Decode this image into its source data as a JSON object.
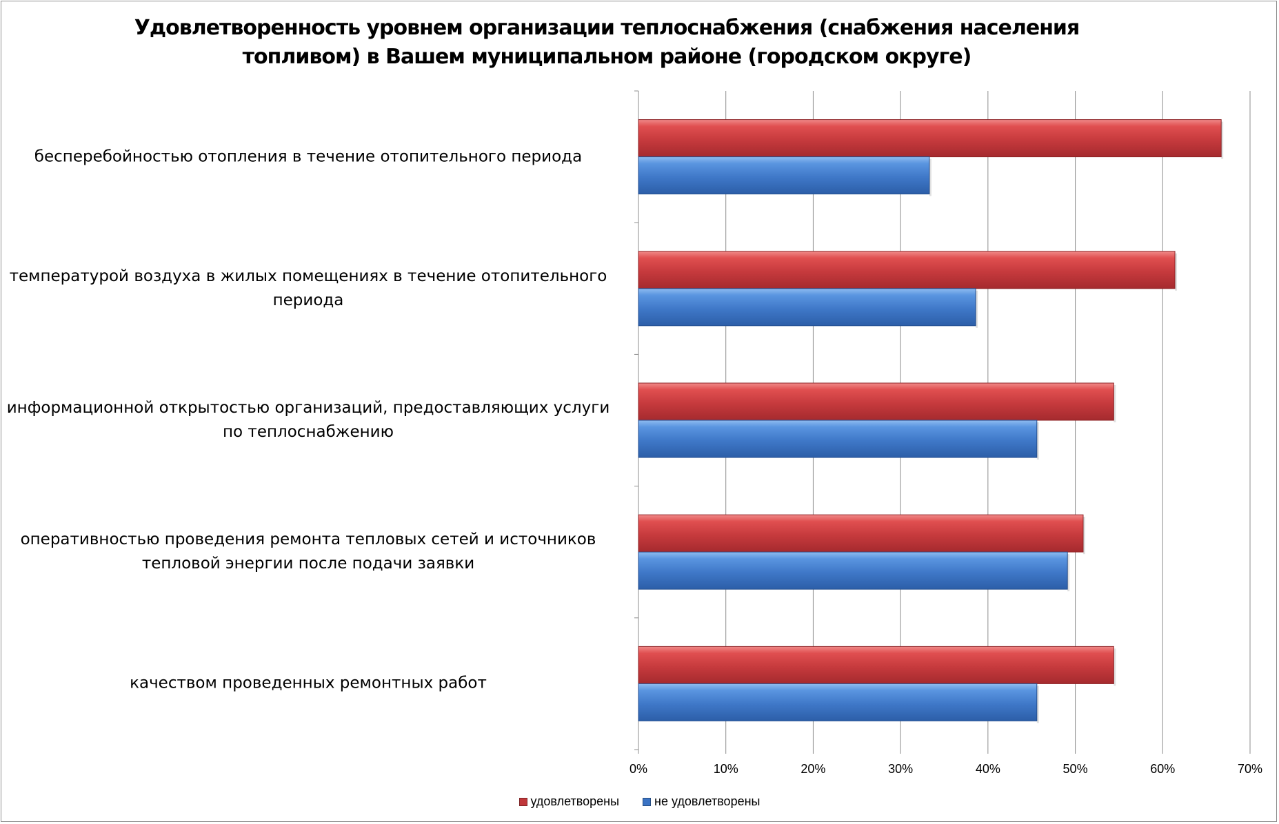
{
  "chart_data": {
    "type": "bar",
    "orientation": "horizontal",
    "title": "Удовлетворенность уровнем организации теплоснабжения (снабжения населения топливом) в Вашем муниципальном районе (городском округе)",
    "title_lines": [
      "Удовлетворенность уровнем организации теплоснабжения (снабжения населения",
      "топливом) в Вашем муниципальном районе (городском округе)"
    ],
    "categories": [
      [
        "бесперебойностью  отопления в течение отопительного периода"
      ],
      [
        "температурой  воздуха в жилых помещениях в течение отопительного",
        "периода"
      ],
      [
        "информационной открытостью  организаций, предоставляющих услуги",
        "по теплоснабжению"
      ],
      [
        "оперативностью проведения ремонта тепловых сетей и источников",
        "тепловой энергии после подачи заявки"
      ],
      [
        "качеством  проведенных ремонтных работ"
      ]
    ],
    "series": [
      {
        "name": "удовлетворены",
        "color": "#c0373a",
        "values": [
          66.7,
          61.4,
          54.4,
          50.9,
          54.4
        ]
      },
      {
        "name": "не удовлетворены",
        "color": "#3a73c4",
        "values": [
          33.3,
          38.6,
          45.6,
          49.1,
          45.6
        ]
      }
    ],
    "xlim": [
      0,
      70
    ],
    "xticks": [
      0,
      10,
      20,
      30,
      40,
      50,
      60,
      70
    ],
    "xtick_labels": [
      "0%",
      "10%",
      "20%",
      "30%",
      "40%",
      "50%",
      "60%",
      "70%"
    ],
    "grid": true,
    "legend_position": "bottom"
  }
}
